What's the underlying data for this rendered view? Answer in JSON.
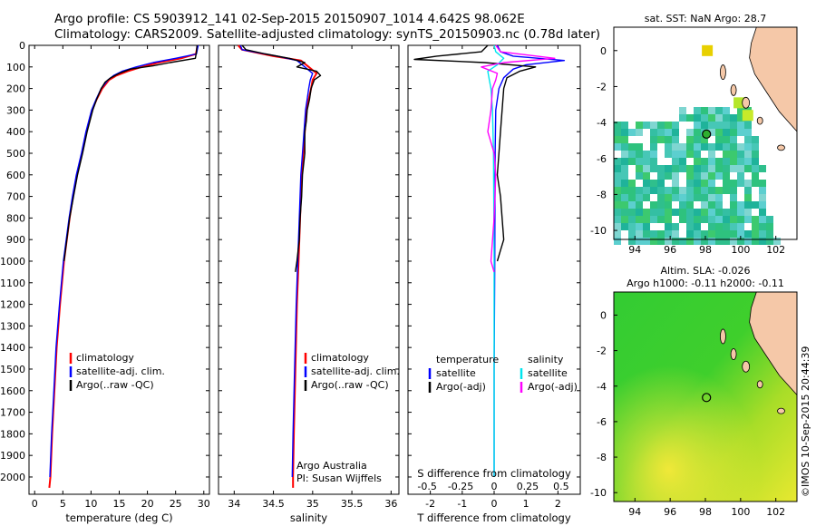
{
  "header": {
    "line1": "Argo profile: CS 5903912_141 02-Sep-2015 20150907_1014 4.642S 98.062E",
    "line2": "Climatology: CARS2009. Satellite-adjusted climatology: synTS_20150903.nc (0.78d later)"
  },
  "colors": {
    "climatology": "#ff0000",
    "satellite_adj": "#0000ff",
    "argo": "#000000",
    "t_satellite": "#0000ff",
    "t_argo": "#000000",
    "s_satellite": "#00e5ee",
    "s_argo": "#ff00ff",
    "land": "#f5c8a8"
  },
  "chart_data": [
    {
      "type": "line",
      "panel": "temperature",
      "xlabel": "temperature (deg C)",
      "xlim": [
        -1,
        31
      ],
      "ylim": [
        2080,
        0
      ],
      "y_reversed": true,
      "xticks": [
        0,
        5,
        10,
        15,
        20,
        25,
        30
      ],
      "yticks": [
        0,
        100,
        200,
        300,
        400,
        500,
        600,
        700,
        800,
        900,
        1000,
        1100,
        1200,
        1300,
        1400,
        1500,
        1600,
        1700,
        1800,
        1900,
        2000
      ],
      "legend": [
        "climatology",
        "satellite-adj. clim.",
        "Argo(..raw -QC)"
      ],
      "series": [
        {
          "name": "climatology",
          "color": "climatology",
          "depth": [
            0,
            40,
            60,
            80,
            100,
            120,
            140,
            160,
            200,
            250,
            300,
            400,
            500,
            600,
            700,
            800,
            1000,
            1200,
            1400,
            1600,
            1800,
            2000,
            2050
          ],
          "values": [
            28.9,
            28.6,
            26,
            22,
            19,
            16.5,
            14.5,
            13.2,
            12,
            11,
            10.2,
            9.2,
            8.4,
            7.5,
            6.8,
            6.2,
            5.2,
            4.5,
            3.9,
            3.5,
            3.1,
            2.8,
            2.6
          ]
        },
        {
          "name": "satellite-adj. clim.",
          "color": "satellite_adj",
          "depth": [
            0,
            40,
            60,
            80,
            100,
            120,
            140,
            160,
            200,
            250,
            300,
            400,
            500,
            600,
            700,
            800,
            1000,
            1200,
            1400,
            1600,
            1800,
            2000
          ],
          "values": [
            29,
            28.7,
            25,
            21,
            18,
            15.5,
            14,
            13,
            11.8,
            10.9,
            10.1,
            9.1,
            8.3,
            7.4,
            6.7,
            6.1,
            5.1,
            4.4,
            3.8,
            3.4,
            3,
            2.7
          ]
        },
        {
          "name": "Argo(..raw -QC)",
          "color": "argo",
          "depth": [
            0,
            30,
            60,
            80,
            95,
            110,
            130,
            150,
            170,
            200,
            250,
            300,
            400,
            500,
            600,
            700,
            800,
            900,
            1000
          ],
          "values": [
            28.8,
            28.7,
            28.5,
            24,
            21,
            17,
            15,
            13.5,
            12.5,
            11.8,
            11,
            10.3,
            9.3,
            8.5,
            7.6,
            6.9,
            6.2,
            5.7,
            5.2
          ]
        }
      ]
    },
    {
      "type": "line",
      "panel": "salinity",
      "xlabel": "salinity",
      "xlim": [
        33.8,
        36.1
      ],
      "ylim": [
        2080,
        0
      ],
      "y_reversed": true,
      "xticks": [
        34,
        34.5,
        35,
        35.5,
        36
      ],
      "legend": [
        "climatology",
        "satellite-adj. clim.",
        "Argo(..raw -QC)"
      ],
      "annotations": [
        "Argo Australia",
        "PI: Susan Wijffels"
      ],
      "series": [
        {
          "name": "climatology",
          "color": "climatology",
          "depth": [
            0,
            20,
            50,
            70,
            100,
            130,
            160,
            200,
            250,
            300,
            400,
            500,
            600,
            800,
            1000,
            1200,
            1500,
            1800,
            2000,
            2050
          ],
          "values": [
            34.05,
            34.1,
            34.5,
            34.85,
            34.95,
            35.05,
            35.0,
            34.98,
            34.95,
            34.92,
            34.9,
            34.88,
            34.86,
            34.84,
            34.82,
            34.8,
            34.78,
            34.76,
            34.75,
            34.75
          ]
        },
        {
          "name": "satellite-adj. clim.",
          "color": "satellite_adj",
          "depth": [
            0,
            20,
            50,
            70,
            100,
            130,
            160,
            200,
            250,
            300,
            400,
            500,
            600,
            800,
            1000,
            1200,
            1500,
            1800,
            2000
          ],
          "values": [
            34.08,
            34.1,
            34.55,
            34.8,
            34.9,
            35.0,
            34.97,
            34.95,
            34.93,
            34.91,
            34.89,
            34.87,
            34.85,
            34.83,
            34.81,
            34.79,
            34.77,
            34.75,
            34.74
          ]
        },
        {
          "name": "Argo(..raw -QC)",
          "color": "argo",
          "depth": [
            0,
            20,
            40,
            60,
            80,
            100,
            120,
            140,
            160,
            200,
            250,
            300,
            350,
            400,
            500,
            600,
            700,
            800,
            900,
            1000,
            1050
          ],
          "values": [
            34.1,
            34.15,
            34.4,
            34.7,
            34.9,
            34.8,
            35.05,
            35.1,
            35.02,
            34.98,
            34.96,
            34.93,
            34.92,
            34.9,
            34.9,
            34.87,
            34.86,
            34.84,
            34.83,
            34.8,
            34.78
          ]
        }
      ]
    },
    {
      "type": "line",
      "panel": "differences",
      "xlabel": "T difference from climatology",
      "x2label": "S difference from climatology",
      "xlim": [
        -2.7,
        2.7
      ],
      "ylim": [
        2080,
        0
      ],
      "y_reversed": true,
      "xticks": [
        -2,
        -1,
        0,
        1,
        2
      ],
      "x2ticks": [
        "-0.5",
        "-0.25",
        "0",
        "0.25",
        "0.5"
      ],
      "legend": {
        "temperature_title": "temperature",
        "salinity_title": "salinity",
        "t_satellite": "satellite",
        "t_argo": "Argo(-adj)",
        "s_satellite": "satellite",
        "s_argo": "Argo(-adj)"
      },
      "series": [
        {
          "name": "satellite",
          "color": "t_satellite",
          "depth": [
            0,
            30,
            50,
            70,
            90,
            110,
            150,
            200,
            300,
            500,
            1000,
            1500,
            2000
          ],
          "values": [
            0.1,
            0.2,
            0.6,
            2.2,
            1.0,
            0.6,
            0.3,
            0.15,
            0.05,
            0.03,
            0.02,
            0.0,
            0.0
          ]
        },
        {
          "name": "Argo(-adj)",
          "color": "t_argo",
          "depth": [
            0,
            30,
            50,
            65,
            80,
            100,
            120,
            150,
            200,
            300,
            400,
            500,
            600,
            700,
            800,
            900,
            950,
            1000
          ],
          "values": [
            -0.2,
            -0.4,
            -1.8,
            -2.5,
            -0.3,
            1.3,
            0.8,
            0.4,
            0.3,
            0.25,
            0.2,
            0.15,
            0.1,
            0.2,
            0.25,
            0.3,
            0.2,
            0.1
          ]
        },
        {
          "name": "satellite",
          "color": "s_satellite",
          "depth": [
            0,
            30,
            60,
            90,
            120,
            160,
            200,
            300,
            500,
            1000,
            1500,
            2000
          ],
          "values": [
            0.0,
            0.05,
            0.3,
            0.1,
            -0.2,
            -0.15,
            -0.1,
            -0.05,
            -0.02,
            0.0,
            0.0,
            0.0
          ]
        },
        {
          "name": "Argo(-adj)",
          "color": "s_argo",
          "depth": [
            0,
            30,
            60,
            80,
            100,
            130,
            160,
            200,
            300,
            400,
            450,
            500,
            600,
            800,
            1000,
            1050
          ],
          "values": [
            0.05,
            0.2,
            1.9,
            0.3,
            -0.4,
            0.1,
            0.05,
            -0.05,
            -0.1,
            -0.2,
            -0.1,
            0.0,
            0.05,
            0.0,
            -0.1,
            0.0
          ]
        }
      ]
    },
    {
      "type": "heatmap",
      "panel": "sst_map",
      "title": "sat. SST: NaN Argo: 28.7",
      "xlim": [
        92.8,
        103.2
      ],
      "ylim": [
        -10.5,
        1.3
      ],
      "xticks": [
        94,
        96,
        98,
        100,
        102
      ],
      "yticks": [
        0,
        -2,
        -4,
        -6,
        -8,
        -10
      ],
      "argo_position": [
        98.062,
        -4.642
      ]
    },
    {
      "type": "heatmap",
      "panel": "sla_map",
      "title": "Altim. SLA: -0.026",
      "subtitle": "Argo h1000: -0.11 h2000: -0.11",
      "xlim": [
        92.8,
        103.2
      ],
      "ylim": [
        -10.5,
        1.3
      ],
      "xticks": [
        94,
        96,
        98,
        100,
        102
      ],
      "yticks": [
        0,
        -2,
        -4,
        -6,
        -8,
        -10
      ],
      "argo_position": [
        98.062,
        -4.642
      ]
    }
  ],
  "footer": {
    "stamp": "©IMOS 10-Sep-2015 20:44:39"
  }
}
